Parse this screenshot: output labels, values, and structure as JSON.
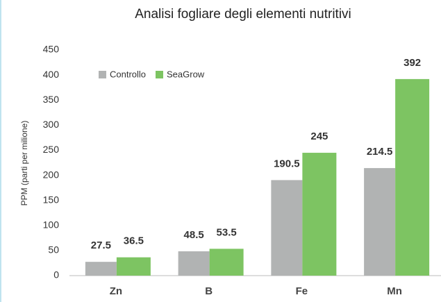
{
  "chart_data": {
    "type": "bar",
    "title": "Analisi fogliare degli elementi nutritivi",
    "y_label": "PPM (parti per milione)",
    "categories": [
      "Zn",
      "B",
      "Fe",
      "Mn"
    ],
    "series": [
      {
        "name": "Controllo",
        "color": "#b1b3b3",
        "values": [
          27.5,
          48.5,
          190.5,
          214.5
        ]
      },
      {
        "name": "SeaGrow",
        "color": "#7dc462",
        "values": [
          36.5,
          53.5,
          245,
          392
        ]
      }
    ],
    "ylim": [
      0,
      450
    ],
    "yticks": [
      0,
      50,
      100,
      150,
      200,
      250,
      300,
      350,
      400,
      450
    ]
  }
}
